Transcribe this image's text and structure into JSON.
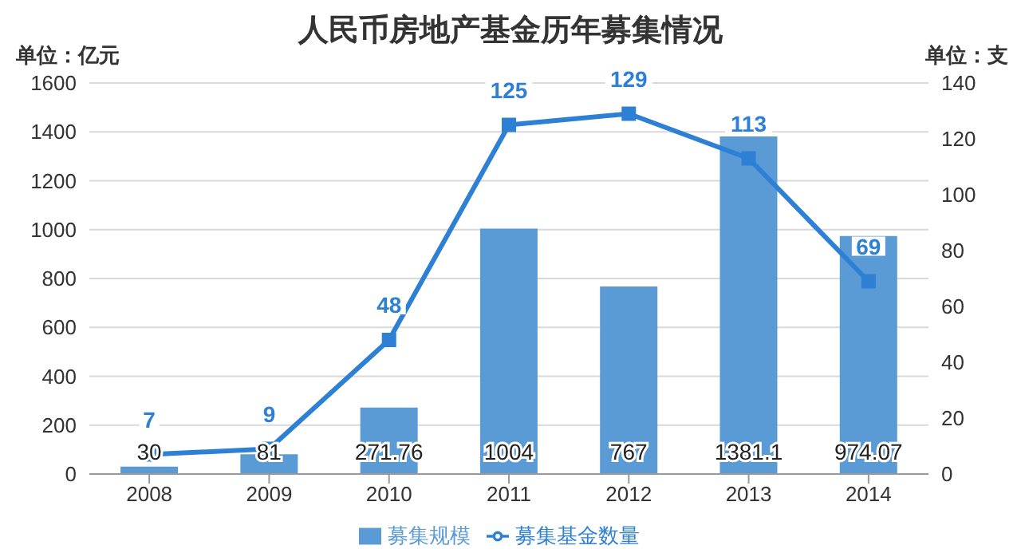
{
  "chart_data": {
    "type": "bar",
    "title": "人民币房地产基金历年募集情况",
    "ylabel": "单位：亿元",
    "y2label": "单位：支",
    "categories": [
      "2008",
      "2009",
      "2010",
      "2011",
      "2012",
      "2013",
      "2014"
    ],
    "series": [
      {
        "name": "募集规模",
        "color": "#5b9bd5",
        "values": [
          30,
          81,
          271.76,
          1004,
          767,
          1381.1,
          974.07
        ]
      },
      {
        "name": "募集基金数量",
        "type": "line",
        "axis": "y2",
        "color": "#2e80d4",
        "values": [
          7,
          9,
          48,
          125,
          129,
          113,
          69
        ]
      }
    ],
    "ylim": [
      0,
      1600
    ],
    "yticks": [
      0,
      200,
      400,
      600,
      800,
      1000,
      1200,
      1400,
      1600
    ],
    "y2lim": [
      0,
      140
    ],
    "y2ticks": [
      0,
      20,
      40,
      60,
      80,
      100,
      120,
      140
    ],
    "grid": "y",
    "legend": "bottom",
    "marker": "square",
    "line_style": "solid",
    "data_labels": true
  }
}
